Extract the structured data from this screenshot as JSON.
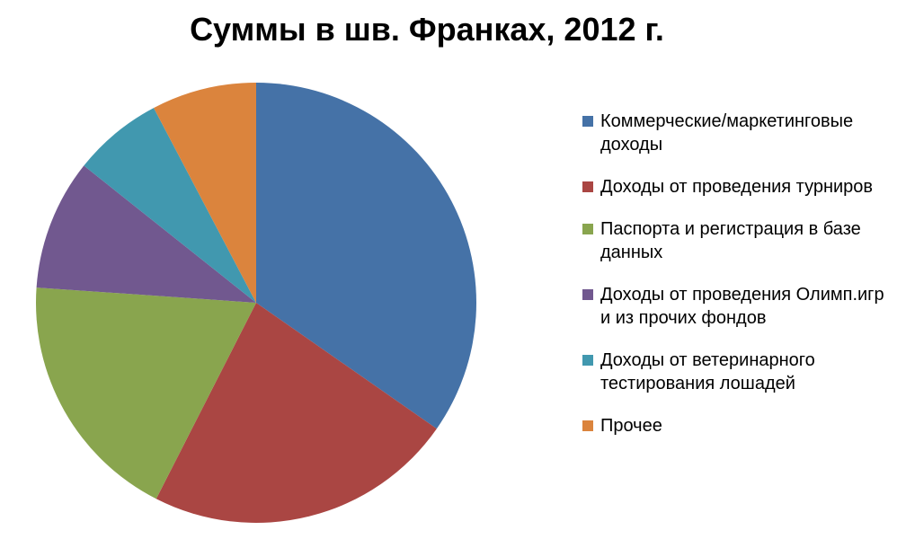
{
  "chart_data": {
    "type": "pie",
    "title": "Суммы в шв. Франках, 2012 г.",
    "categories": [
      "Коммерческие/маркетинговые доходы",
      "Доходы от проведения турниров",
      "Паспорта и регистрация в базе данных",
      "Доходы от проведения Олимп.игр и из прочих фондов",
      "Доходы от ветеринарного тестирования лошадей",
      "Прочее"
    ],
    "values": [
      34.7,
      22.8,
      18.6,
      9.6,
      6.6,
      7.7
    ],
    "colors": [
      "#4572A7",
      "#AA4643",
      "#89A54E",
      "#71588F",
      "#4198AF",
      "#DB843D"
    ]
  }
}
